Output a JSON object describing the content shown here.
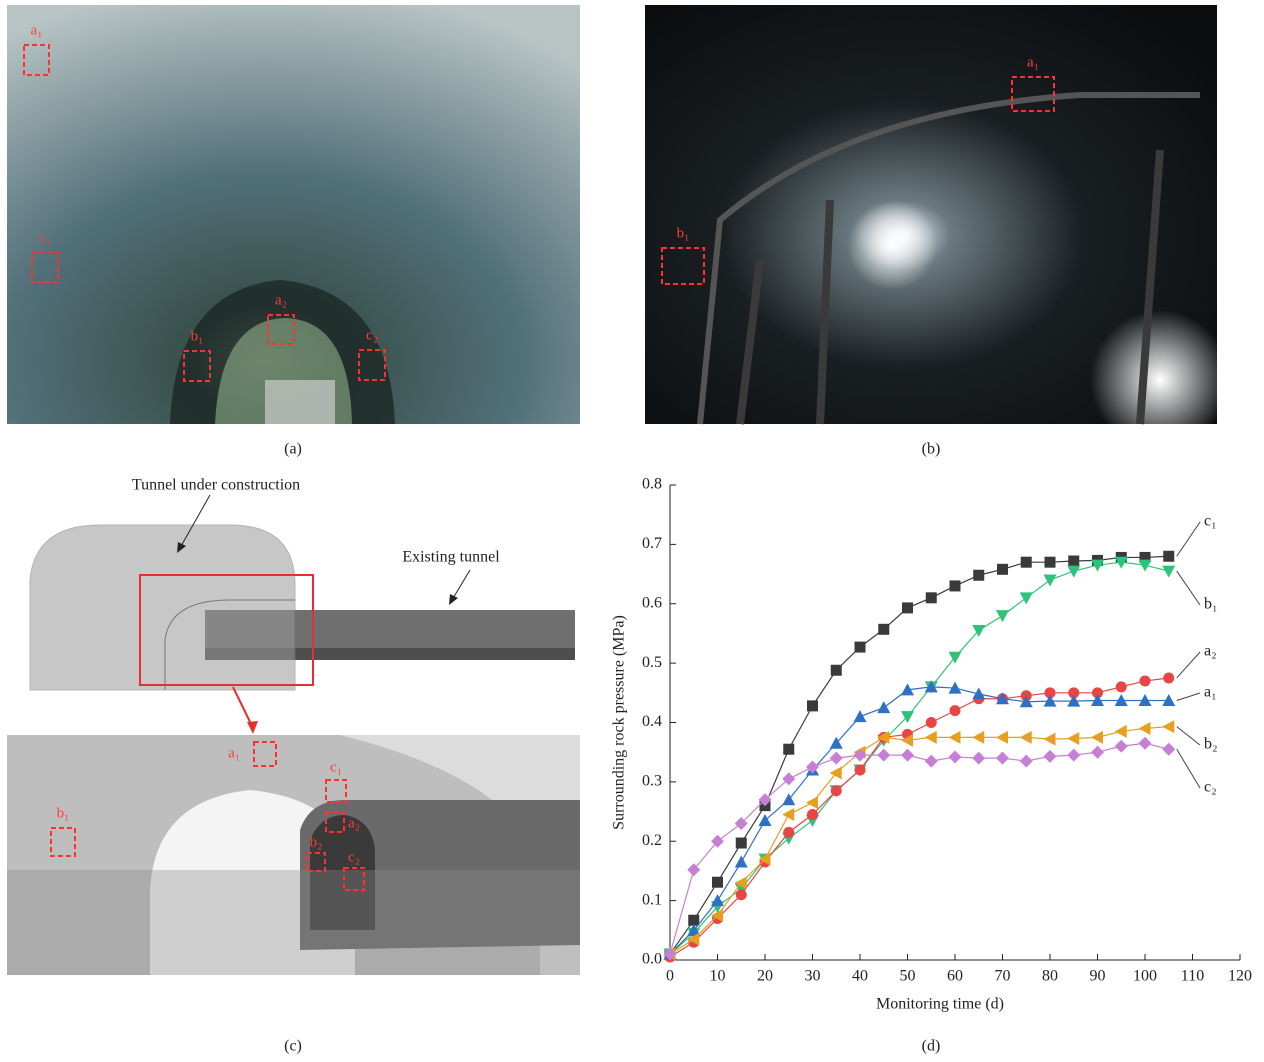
{
  "panels": {
    "a": {
      "caption": "(a)",
      "markers": [
        "a₁",
        "c₁",
        "b₁",
        "a₂",
        "c₂"
      ]
    },
    "b": {
      "caption": "(b)",
      "markers": [
        "a₁",
        "b₁"
      ]
    },
    "c": {
      "caption": "(c)",
      "annotations": [
        "Tunnel under construction",
        "Existing tunnel"
      ],
      "markers": [
        "a₁",
        "c₁",
        "a₂",
        "b₁",
        "b₂",
        "c₂"
      ]
    },
    "d": {
      "caption": "(d)"
    }
  },
  "chart_data": {
    "type": "line",
    "x_label": "Monitoring time (d)",
    "y_label": "Surrounding rock pressure (MPa)",
    "x": [
      0,
      5,
      10,
      15,
      20,
      25,
      30,
      35,
      40,
      45,
      50,
      55,
      60,
      65,
      70,
      75,
      80,
      85,
      90,
      95,
      100,
      105
    ],
    "series": [
      {
        "name": "c₁",
        "color": "#3a3a3a",
        "marker": "square",
        "values": [
          0.01,
          0.067,
          0.131,
          0.197,
          0.26,
          0.355,
          0.428,
          0.488,
          0.527,
          0.557,
          0.593,
          0.61,
          0.63,
          0.648,
          0.658,
          0.67,
          0.67,
          0.672,
          0.673,
          0.678,
          0.678,
          0.68
        ]
      },
      {
        "name": "b₁",
        "color": "#2ec27a",
        "marker": "triangle-down",
        "values": [
          0.01,
          0.045,
          0.09,
          0.12,
          0.17,
          0.205,
          0.235,
          0.285,
          0.32,
          0.37,
          0.41,
          0.46,
          0.51,
          0.555,
          0.58,
          0.61,
          0.64,
          0.655,
          0.665,
          0.67,
          0.665,
          0.655
        ]
      },
      {
        "name": "a₂",
        "color": "#e84545",
        "marker": "circle",
        "values": [
          0.005,
          0.03,
          0.07,
          0.11,
          0.165,
          0.215,
          0.245,
          0.285,
          0.32,
          0.375,
          0.38,
          0.4,
          0.42,
          0.44,
          0.44,
          0.445,
          0.45,
          0.45,
          0.45,
          0.46,
          0.47,
          0.475
        ]
      },
      {
        "name": "a₁",
        "color": "#2f6fc4",
        "marker": "triangle",
        "values": [
          0.01,
          0.05,
          0.1,
          0.165,
          0.235,
          0.27,
          0.32,
          0.365,
          0.41,
          0.425,
          0.455,
          0.46,
          0.458,
          0.448,
          0.44,
          0.435,
          0.436,
          0.436,
          0.437,
          0.437,
          0.437,
          0.437
        ]
      },
      {
        "name": "b₂",
        "color": "#e6a020",
        "marker": "triangle-left",
        "values": [
          0.01,
          0.035,
          0.075,
          0.13,
          0.17,
          0.245,
          0.265,
          0.315,
          0.35,
          0.375,
          0.37,
          0.375,
          0.375,
          0.375,
          0.375,
          0.375,
          0.372,
          0.373,
          0.375,
          0.385,
          0.39,
          0.393
        ]
      },
      {
        "name": "c₂",
        "color": "#c77fd6",
        "marker": "diamond",
        "values": [
          0.01,
          0.152,
          0.2,
          0.23,
          0.27,
          0.305,
          0.325,
          0.34,
          0.345,
          0.345,
          0.345,
          0.335,
          0.342,
          0.34,
          0.34,
          0.335,
          0.343,
          0.345,
          0.35,
          0.36,
          0.365,
          0.355
        ]
      }
    ],
    "xlim": [
      0,
      120
    ],
    "xticks": [
      0,
      10,
      20,
      30,
      40,
      50,
      60,
      70,
      80,
      90,
      100,
      110,
      120
    ],
    "ylim": [
      0,
      0.8
    ],
    "yticks": [
      {
        "value": 0,
        "label": "0.0"
      },
      0.1,
      0.2,
      0.3,
      0.4,
      0.5,
      0.6,
      0.7,
      0.8
    ]
  }
}
